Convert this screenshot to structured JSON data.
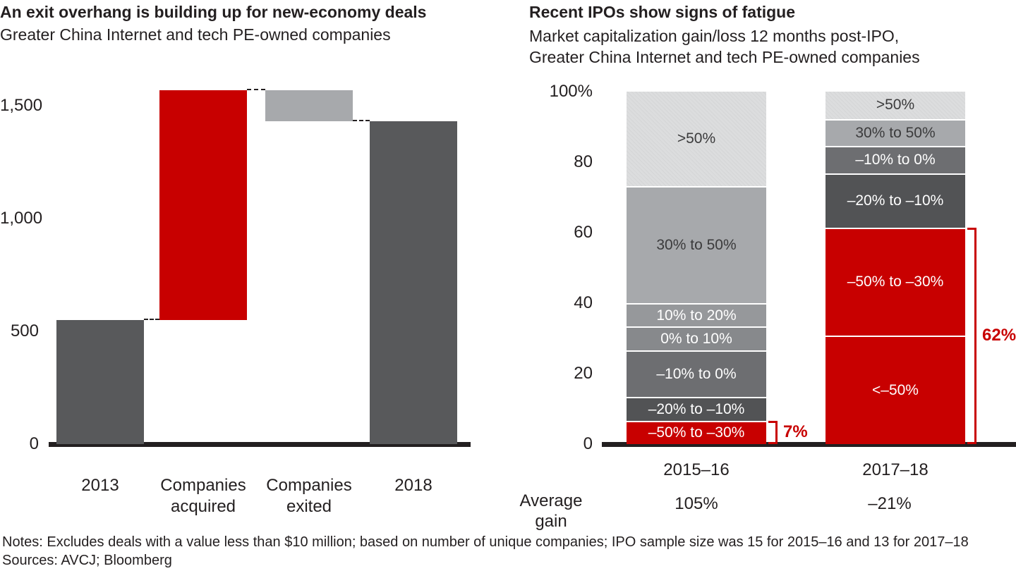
{
  "colors": {
    "red": "#c80000",
    "dark_gray": "#58595b",
    "mid_gray": "#a7a9ac",
    "gray_10_20": "#96989b",
    "gray_0_10": "#87898c",
    "gray_neg10_0": "#6d6e71",
    "gray_neg20_neg10": "#525355",
    "light_hatch": "#dcddde",
    "light_hatch_line": "#d4d5d6",
    "axis_black": "#231f20",
    "dark_text": "#3b3b3c",
    "white_text": "#ffffff"
  },
  "chart_data": [
    {
      "type": "bar",
      "subtype": "waterfall",
      "title": "An exit overhang is building up for new-economy deals",
      "subtitle": "Greater China Internet and tech PE-owned companies",
      "ylim": [
        0,
        1600
      ],
      "yticks": [
        {
          "label": "0",
          "value": 0
        },
        {
          "label": "500",
          "value": 500
        },
        {
          "label": "1,000",
          "value": 1000
        },
        {
          "label": "1,500",
          "value": 1500
        }
      ],
      "grid": false,
      "bars": [
        {
          "label": "2013",
          "from": 0,
          "to": 550,
          "color": "dark_gray"
        },
        {
          "label": "Companies acquired",
          "from": 550,
          "to": 1570,
          "color": "red"
        },
        {
          "label": "Companies exited",
          "from": 1430,
          "to": 1570,
          "color": "mid_gray"
        },
        {
          "label": "2018",
          "from": 0,
          "to": 1430,
          "color": "dark_gray"
        }
      ],
      "connectors": [
        {
          "value": 550
        },
        {
          "value": 1570
        },
        {
          "value": 1430
        }
      ]
    },
    {
      "type": "bar",
      "subtype": "stacked-100pct",
      "title": "Recent IPOs show signs of fatigue",
      "subtitle_line1": "Market capitalization gain/loss 12 months post-IPO,",
      "subtitle_line2": "Greater China Internet and tech PE-owned companies",
      "ylim": [
        0,
        100
      ],
      "yticks": [
        {
          "label": "100%",
          "value": 100
        },
        {
          "label": "80",
          "value": 80
        },
        {
          "label": "60",
          "value": 60
        },
        {
          "label": "40",
          "value": 40
        },
        {
          "label": "20",
          "value": 20
        },
        {
          "label": "0",
          "value": 0
        }
      ],
      "grid": false,
      "average_row_label": "Average gain",
      "bars": [
        {
          "label": "2015–16",
          "average_gain": "105%",
          "segments_top_to_bottom": [
            {
              "label": ">50%",
              "value": 26.7,
              "color": "light_hatch",
              "text": "dark"
            },
            {
              "label": "30% to 50%",
              "value": 33.3,
              "color": "mid_gray",
              "text": "dark"
            },
            {
              "label": "10% to 20%",
              "value": 6.6,
              "color": "gray_10_20",
              "text": "white"
            },
            {
              "label": "0% to 10%",
              "value": 6.7,
              "color": "gray_0_10",
              "text": "white"
            },
            {
              "label": "–10% to 0%",
              "value": 13.3,
              "color": "gray_neg10_0",
              "text": "white"
            },
            {
              "label": "–20% to –10%",
              "value": 6.7,
              "color": "gray_neg20_neg10",
              "text": "white"
            },
            {
              "label": "–50% to –30%",
              "value": 6.7,
              "color": "red",
              "text": "white"
            }
          ],
          "bracket": {
            "label": "7%",
            "from": 0,
            "to": 6.7
          }
        },
        {
          "label": "2017–18",
          "average_gain": "–21%",
          "segments_top_to_bottom": [
            {
              "label": ">50%",
              "value": 7.7,
              "color": "light_hatch",
              "text": "dark"
            },
            {
              "label": "30% to 50%",
              "value": 7.7,
              "color": "mid_gray",
              "text": "dark"
            },
            {
              "label": "–10% to 0%",
              "value": 7.7,
              "color": "gray_neg10_0",
              "text": "white"
            },
            {
              "label": "–20% to –10%",
              "value": 15.4,
              "color": "gray_neg20_neg10",
              "text": "white"
            },
            {
              "label": "–50% to –30%",
              "value": 30.7,
              "color": "red",
              "text": "white"
            },
            {
              "label": "<–50%",
              "value": 30.8,
              "color": "red",
              "text": "white"
            }
          ],
          "bracket": {
            "label": "62%",
            "from": 0,
            "to": 61.5
          }
        }
      ]
    }
  ],
  "notes": {
    "line1": "Notes: Excludes deals with a value less than $10 million; based on number of unique companies; IPO sample size was 15 for 2015–16 and 13 for 2017–18",
    "line2": "Sources: AVCJ; Bloomberg"
  }
}
